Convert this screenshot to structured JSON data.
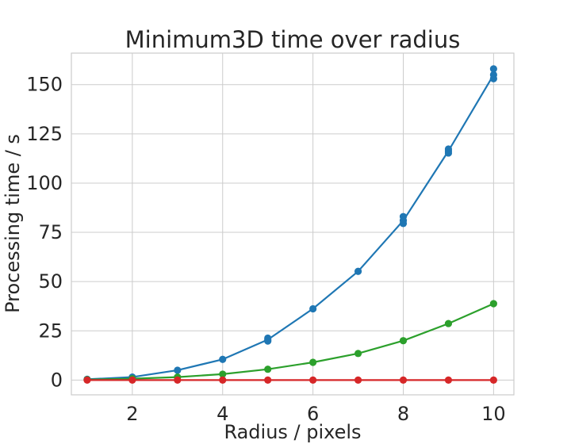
{
  "chart_data": {
    "type": "line",
    "title": "Minimum3D time over radius",
    "xlabel": "Radius / pixels",
    "ylabel": "Processing time / s",
    "xlim": [
      0.65,
      10.45
    ],
    "ylim": [
      -7.5,
      166
    ],
    "xticks": [
      2,
      4,
      6,
      8,
      10
    ],
    "yticks": [
      0,
      25,
      50,
      75,
      100,
      125,
      150
    ],
    "grid": true,
    "x": [
      1,
      2,
      3,
      4,
      5,
      6,
      7,
      8,
      9,
      10
    ],
    "series": [
      {
        "color": "#1f77b4",
        "values": [
          0.4,
          1.5,
          5.0,
          10.5,
          20.5,
          36.2,
          55.2,
          81.0,
          116.3,
          155.0
        ],
        "extra_points": [
          [
            5,
            21.3
          ],
          [
            5,
            19.8
          ],
          [
            8,
            83.0
          ],
          [
            8,
            79.5
          ],
          [
            9,
            117.3
          ],
          [
            9,
            115.3
          ],
          [
            10,
            158.0
          ],
          [
            10,
            153.0
          ]
        ]
      },
      {
        "color": "#2ca02c",
        "values": [
          0.2,
          0.7,
          1.5,
          3.0,
          5.5,
          9.0,
          13.5,
          20.0,
          28.7,
          38.8
        ],
        "extra_points": []
      },
      {
        "color": "#d62728",
        "values": [
          0,
          0,
          0,
          0,
          0,
          0,
          0,
          0,
          0,
          0
        ],
        "extra_points": []
      }
    ]
  }
}
